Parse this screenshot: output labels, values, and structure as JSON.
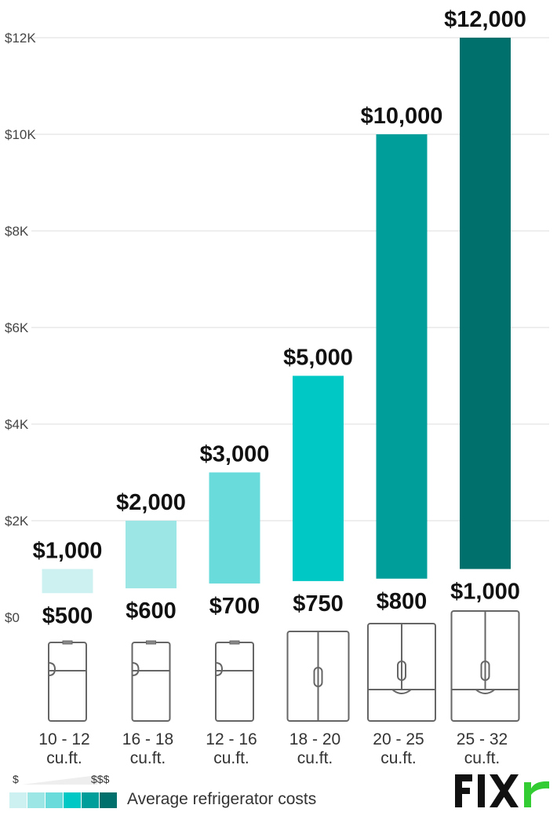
{
  "chart_data": {
    "type": "bar",
    "subtype": "floating-range",
    "y_axis": {
      "ticks": [
        0,
        2000,
        4000,
        6000,
        8000,
        10000,
        12000
      ],
      "tick_labels": [
        "$0",
        "$2K",
        "$4K",
        "$6K",
        "$8K",
        "$10K",
        "$12K"
      ],
      "ylim": [
        0,
        12000
      ],
      "grid": true
    },
    "categories": [
      [
        "10 - 12",
        "cu.ft."
      ],
      [
        "16 - 18",
        "cu.ft."
      ],
      [
        "12 - 16",
        "cu.ft."
      ],
      [
        "18 - 20",
        "cu.ft."
      ],
      [
        "20 - 25",
        "cu.ft."
      ],
      [
        "25 - 32",
        "cu.ft."
      ]
    ],
    "low_values": [
      500,
      600,
      700,
      750,
      800,
      1000
    ],
    "high_values": [
      1000,
      2000,
      3000,
      5000,
      10000,
      12000
    ],
    "low_labels": [
      "$500",
      "$600",
      "$700",
      "$750",
      "$800",
      "$1,000"
    ],
    "high_labels": [
      "$1,000",
      "$2,000",
      "$3,000",
      "$5,000",
      "$10,000",
      "$12,000"
    ],
    "bar_colors": [
      "#cdf1f1",
      "#9ce6e6",
      "#69dbdb",
      "#00c8c4",
      "#009e9b",
      "#00706d"
    ],
    "icons": [
      "fridge-top-freezer-icon",
      "fridge-top-freezer-icon",
      "fridge-top-freezer-icon",
      "fridge-side-by-side-icon",
      "fridge-french-door-icon",
      "fridge-french-door-icon"
    ]
  },
  "legend": {
    "low_label": "$",
    "high_label": "$$$",
    "text": "Average refrigerator costs",
    "colors": [
      "#cdf1f1",
      "#9ce6e6",
      "#69dbdb",
      "#00c8c4",
      "#009e9b",
      "#00706d"
    ]
  },
  "brand": {
    "name": "FIXR",
    "text_color": "#111111",
    "accent_color": "#33cc33"
  }
}
